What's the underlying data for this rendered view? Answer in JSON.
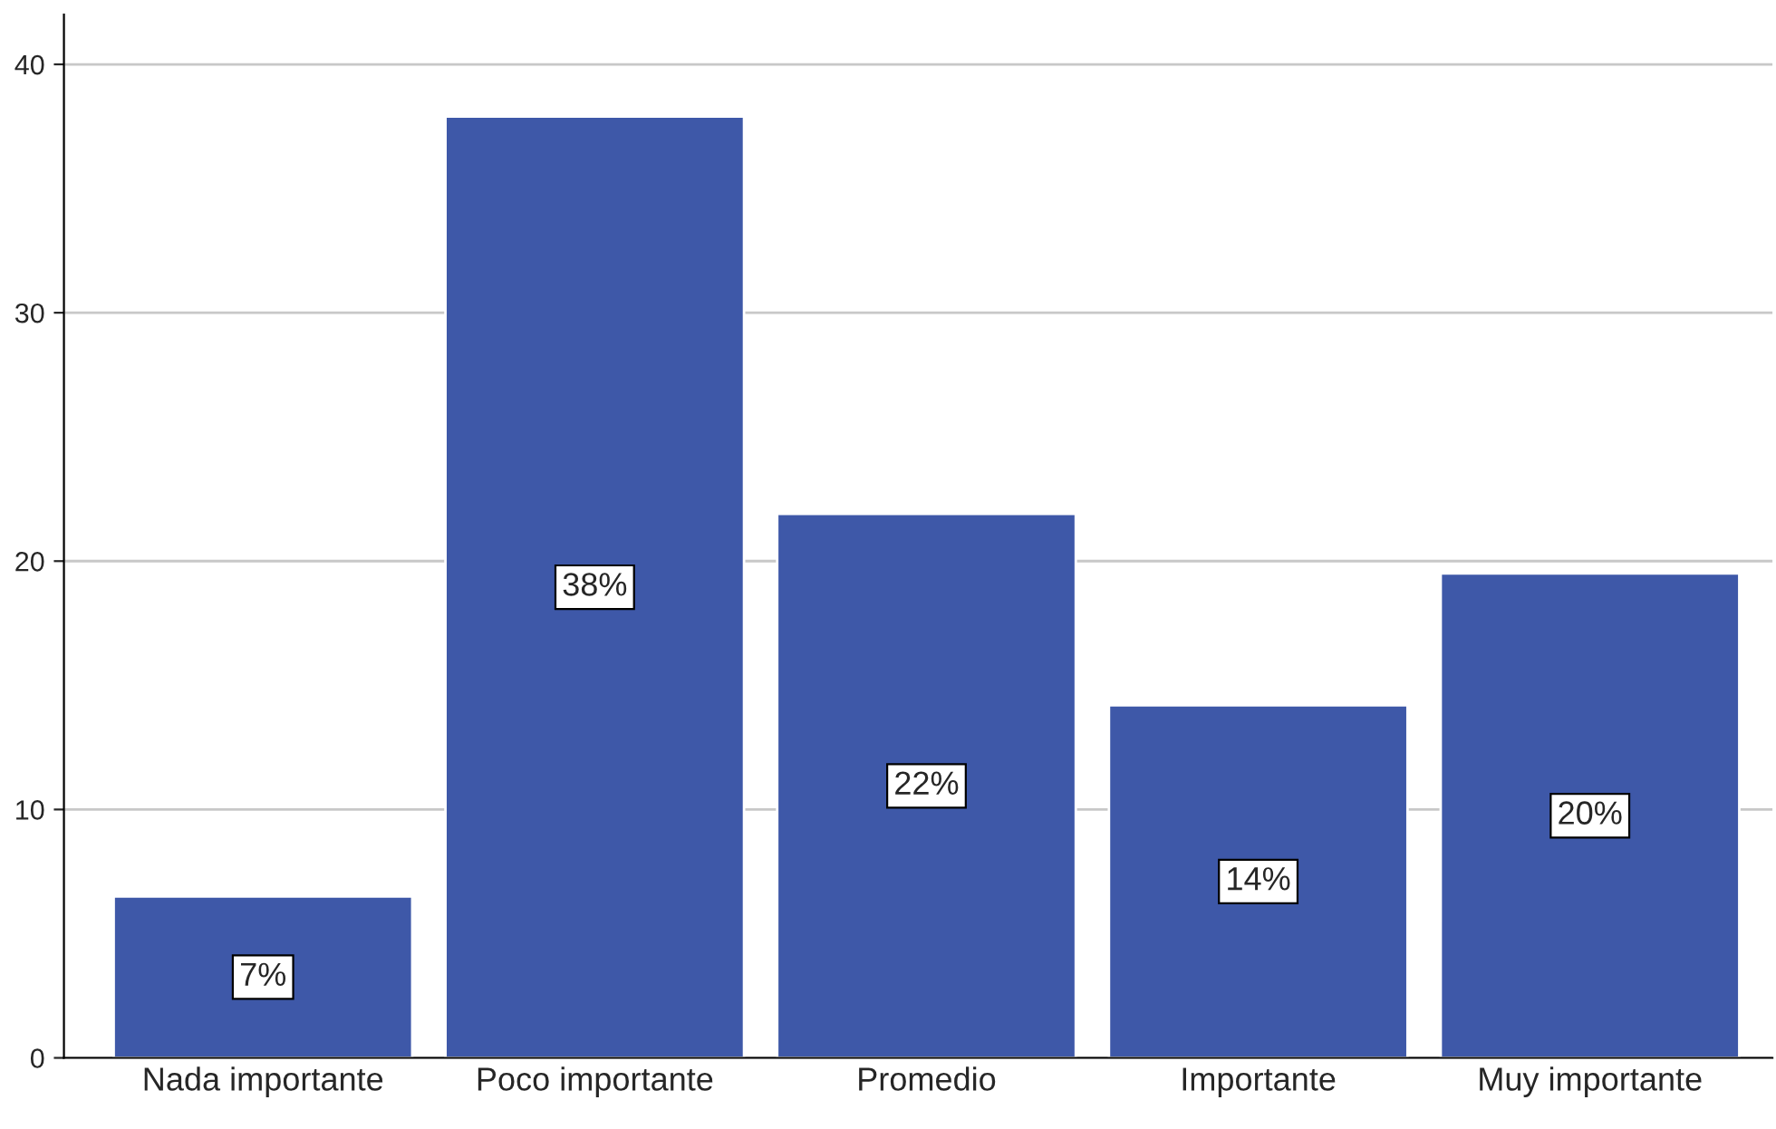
{
  "chart_data": {
    "type": "bar",
    "categories": [
      "Nada importante",
      "Poco importante",
      "Promedio",
      "Importante",
      "Muy importante"
    ],
    "values": [
      6.5,
      37.9,
      21.9,
      14.2,
      19.5
    ],
    "value_labels": [
      "7%",
      "38%",
      "22%",
      "14%",
      "20%"
    ],
    "color": "#3e58a8",
    "ylim": [
      0,
      42
    ],
    "yticks": [
      0,
      10,
      20,
      30,
      40
    ],
    "grid": "y",
    "legend": false
  }
}
